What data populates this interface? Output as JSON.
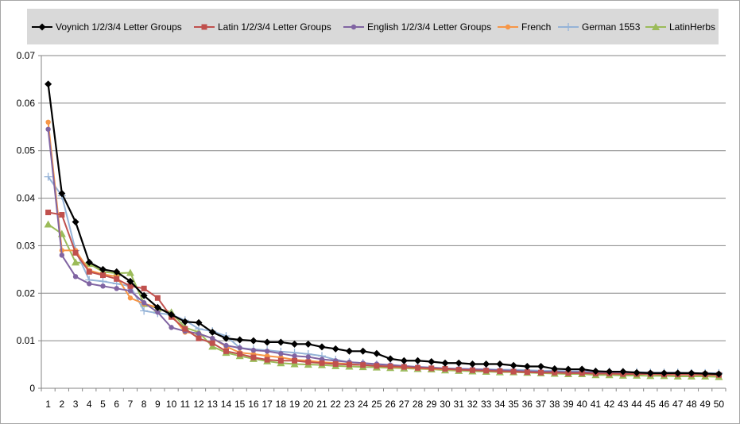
{
  "chart_data": {
    "type": "line",
    "title": "",
    "xlabel": "",
    "ylabel": "",
    "ylim": [
      0,
      0.07
    ],
    "y_ticks": [
      "0",
      "0.01",
      "0.02",
      "0.03",
      "0.04",
      "0.05",
      "0.06",
      "0.07"
    ],
    "grid": "horizontal",
    "legend": "top",
    "x": [
      1,
      2,
      3,
      4,
      5,
      6,
      7,
      8,
      9,
      10,
      11,
      12,
      13,
      14,
      15,
      16,
      17,
      18,
      19,
      20,
      21,
      22,
      23,
      24,
      25,
      26,
      27,
      28,
      29,
      30,
      31,
      32,
      33,
      34,
      35,
      36,
      37,
      38,
      39,
      40,
      41,
      42,
      43,
      44,
      45,
      46,
      47,
      48,
      49,
      50
    ],
    "series": [
      {
        "name": "Voynich 1/2/3/4 Letter Groups",
        "color": "#000000",
        "marker": "diamond",
        "values": [
          0.064,
          0.041,
          0.035,
          0.0265,
          0.025,
          0.0245,
          0.0225,
          0.0195,
          0.017,
          0.0155,
          0.014,
          0.0138,
          0.0118,
          0.0105,
          0.0102,
          0.01,
          0.0097,
          0.0097,
          0.0093,
          0.0093,
          0.0087,
          0.0083,
          0.0078,
          0.0078,
          0.0073,
          0.0062,
          0.0058,
          0.0058,
          0.0056,
          0.0053,
          0.0053,
          0.0051,
          0.0051,
          0.0051,
          0.0048,
          0.0046,
          0.0046,
          0.0041,
          0.004,
          0.004,
          0.0036,
          0.0035,
          0.0035,
          0.0033,
          0.0032,
          0.0032,
          0.0032,
          0.0032,
          0.0031,
          0.003
        ]
      },
      {
        "name": "Latin 1/2/3/4 Letter Groups",
        "color": "#c0504d",
        "marker": "square",
        "values": [
          0.037,
          0.0365,
          0.0285,
          0.0245,
          0.0238,
          0.023,
          0.0215,
          0.021,
          0.019,
          0.015,
          0.0125,
          0.0105,
          0.0095,
          0.0078,
          0.0072,
          0.0065,
          0.006,
          0.0058,
          0.0058,
          0.0055,
          0.0053,
          0.0051,
          0.005,
          0.0049,
          0.0047,
          0.0046,
          0.0045,
          0.0043,
          0.0042,
          0.0041,
          0.0039,
          0.0038,
          0.0037,
          0.0036,
          0.0035,
          0.0034,
          0.0033,
          0.0033,
          0.0032,
          0.0032,
          0.0031,
          0.0031,
          0.003,
          0.003,
          0.003,
          0.0029,
          0.0029,
          0.0029,
          0.0029,
          0.0028
        ]
      },
      {
        "name": "English 1/2/3/4 Letter Groups",
        "color": "#8064a2",
        "marker": "circle",
        "values": [
          0.0545,
          0.028,
          0.0235,
          0.022,
          0.0215,
          0.021,
          0.0205,
          0.018,
          0.016,
          0.0128,
          0.012,
          0.0115,
          0.0105,
          0.009,
          0.0085,
          0.008,
          0.0078,
          0.0073,
          0.0068,
          0.0066,
          0.0061,
          0.0058,
          0.0055,
          0.0053,
          0.0051,
          0.0049,
          0.0047,
          0.0045,
          0.0043,
          0.0042,
          0.0041,
          0.004,
          0.0039,
          0.0038,
          0.0037,
          0.0036,
          0.0035,
          0.0035,
          0.0034,
          0.0034,
          0.0033,
          0.0033,
          0.0032,
          0.0032,
          0.0031,
          0.0031,
          0.003,
          0.003,
          0.003,
          0.003
        ]
      },
      {
        "name": "French",
        "color": "#f79646",
        "marker": "circle",
        "values": [
          0.056,
          0.029,
          0.029,
          0.0248,
          0.024,
          0.0235,
          0.019,
          0.0178,
          0.017,
          0.0155,
          0.0118,
          0.0115,
          0.0105,
          0.0088,
          0.0075,
          0.0072,
          0.0068,
          0.0065,
          0.006,
          0.0058,
          0.0055,
          0.0053,
          0.0051,
          0.0049,
          0.0047,
          0.0045,
          0.0044,
          0.0042,
          0.0041,
          0.004,
          0.0039,
          0.0038,
          0.0037,
          0.0036,
          0.0035,
          0.0034,
          0.0033,
          0.0033,
          0.0032,
          0.0032,
          0.0031,
          0.0031,
          0.003,
          0.003,
          0.003,
          0.0029,
          0.0029,
          0.0029,
          0.0028,
          0.0028
        ]
      },
      {
        "name": "German 1553",
        "color": "#95b3d7",
        "marker": "plus",
        "values": [
          0.0445,
          0.0405,
          0.029,
          0.0228,
          0.0225,
          0.022,
          0.0215,
          0.0163,
          0.0158,
          0.0155,
          0.0143,
          0.0125,
          0.012,
          0.011,
          0.0085,
          0.0082,
          0.008,
          0.0077,
          0.0075,
          0.0072,
          0.0068,
          0.006,
          0.0055,
          0.0053,
          0.005,
          0.0048,
          0.0046,
          0.0045,
          0.0044,
          0.0042,
          0.0041,
          0.004,
          0.004,
          0.0039,
          0.0039,
          0.0038,
          0.0037,
          0.0037,
          0.0036,
          0.0036,
          0.0035,
          0.0035,
          0.0034,
          0.0034,
          0.0033,
          0.0033,
          0.0033,
          0.0032,
          0.0032,
          0.0032
        ]
      },
      {
        "name": "LatinHerbs",
        "color": "#9bbb59",
        "marker": "triangle",
        "values": [
          0.0345,
          0.0325,
          0.0265,
          0.0262,
          0.0245,
          0.0242,
          0.0243,
          0.0178,
          0.0168,
          0.016,
          0.0128,
          0.0118,
          0.0088,
          0.0075,
          0.0068,
          0.0062,
          0.0057,
          0.0053,
          0.0051,
          0.005,
          0.0049,
          0.0047,
          0.0046,
          0.0045,
          0.0044,
          0.0043,
          0.0042,
          0.0041,
          0.004,
          0.0038,
          0.0037,
          0.0036,
          0.0035,
          0.0034,
          0.0034,
          0.0033,
          0.0032,
          0.0031,
          0.003,
          0.003,
          0.0028,
          0.0028,
          0.0027,
          0.0027,
          0.0026,
          0.0026,
          0.0025,
          0.0025,
          0.0025,
          0.0024
        ]
      }
    ]
  }
}
